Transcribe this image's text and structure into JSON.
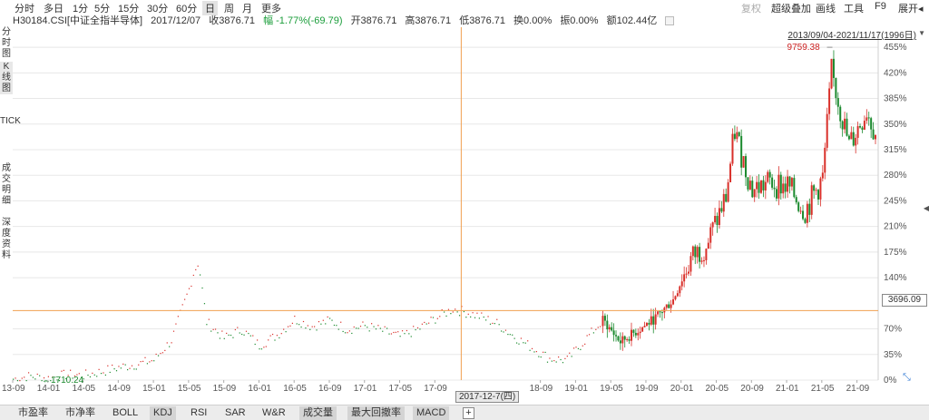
{
  "periods": [
    "分时",
    "多日",
    "1分",
    "5分",
    "15分",
    "30分",
    "60分",
    "日",
    "周",
    "月",
    "更多"
  ],
  "active_period": "日",
  "right_menu": {
    "fuquan": "复权",
    "overlay": "超级叠加",
    "draw": "画线",
    "tools": "工具",
    "f9": "F9",
    "expand": "展开◂"
  },
  "info": {
    "code_name": "H30184.CSI[中证全指半导体]",
    "date": "2017/12/07",
    "close": "收3876.71",
    "change": "幅 -1.77%(-69.79)",
    "open": "开3876.71",
    "high": "高3876.71",
    "low": "低3876.71",
    "turnover": "换0.00%",
    "amplitude": "振0.00%",
    "amount": "额102.44亿"
  },
  "side_tabs": {
    "fenshi": "分时图",
    "kline": "K线图",
    "tick": "TICK",
    "deal": "成交明细",
    "depth": "深度资料"
  },
  "range_label": "2013/09/04-2021/11/17(1996日)",
  "ref_value": "3696.09",
  "crosshair_date": "2017-12-7(四)",
  "colors": {
    "up": "#d9302a",
    "down": "#1b8a2e",
    "crosshair": "#f0a050",
    "grid": "#e8e8e8"
  },
  "chart_data": {
    "type": "candlestick",
    "y_tick_labels": [
      "455%",
      "420%",
      "385%",
      "350%",
      "315%",
      "280%",
      "245%",
      "210%",
      "175%",
      "140%",
      "70%",
      "35%",
      "0%"
    ],
    "y_tick_values": [
      455,
      420,
      385,
      350,
      315,
      280,
      245,
      210,
      175,
      140,
      70,
      35,
      0
    ],
    "ylim": [
      0,
      470
    ],
    "x_tick_labels": [
      "13-09",
      "14-01",
      "14-05",
      "14-09",
      "15-01",
      "15-05",
      "15-09",
      "16-01",
      "16-05",
      "16-09",
      "17-01",
      "17-05",
      "17-09",
      "18-09",
      "19-01",
      "19-05",
      "19-09",
      "20-01",
      "20-05",
      "20-09",
      "21-01",
      "21-05",
      "21-09"
    ],
    "x_tick_dates": [
      "2013-09",
      "2014-01",
      "2014-05",
      "2014-09",
      "2015-01",
      "2015-05",
      "2015-09",
      "2016-01",
      "2016-05",
      "2016-09",
      "2017-01",
      "2017-05",
      "2017-09",
      "2018-09",
      "2019-01",
      "2019-05",
      "2019-09",
      "2020-01",
      "2020-05",
      "2020-09",
      "2021-01",
      "2021-05",
      "2021-09"
    ],
    "x_range": [
      "2013-09",
      "2021-11"
    ],
    "max_label": "9759.38",
    "min_label": "1710.24",
    "ref_line_pct": 95,
    "crosshair_date": "2017-12",
    "series": [
      {
        "name": "",
        "dates": [
          "2013-09",
          "2013-11",
          "2014-01",
          "2014-03",
          "2014-05",
          "2014-07",
          "2014-09",
          "2014-11",
          "2015-01",
          "2015-03",
          "2015-05",
          "2015-06",
          "2015-07",
          "2015-09",
          "2015-11",
          "2016-01",
          "2016-03",
          "2016-05",
          "2016-07",
          "2016-09",
          "2016-11",
          "2017-01",
          "2017-03",
          "2017-05",
          "2017-07",
          "2017-09",
          "2017-11",
          "2017-12",
          "2018-02",
          "2018-04",
          "2018-06",
          "2018-08",
          "2018-10",
          "2018-12",
          "2019-02",
          "2019-04",
          "2019-06",
          "2019-08",
          "2019-10",
          "2019-12",
          "2020-02",
          "2020-04",
          "2020-06",
          "2020-07",
          "2020-09",
          "2020-11",
          "2021-01",
          "2021-03",
          "2021-05",
          "2021-06",
          "2021-08",
          "2021-10",
          "2021-11"
        ],
        "pct": [
          2,
          6,
          3,
          8,
          7,
          12,
          18,
          22,
          28,
          55,
          125,
          168,
          80,
          58,
          70,
          48,
          62,
          84,
          74,
          82,
          70,
          75,
          68,
          60,
          70,
          85,
          98,
          95,
          88,
          78,
          60,
          45,
          30,
          28,
          55,
          82,
          52,
          68,
          85,
          110,
          165,
          190,
          250,
          340,
          260,
          270,
          265,
          232,
          275,
          420,
          320,
          370,
          338
        ]
      }
    ]
  },
  "bottom_tabs": [
    "市盈率",
    "市净率",
    "BOLL",
    "KDJ",
    "RSI",
    "SAR",
    "W&R",
    "成交量",
    "最大回撤率",
    "MACD"
  ],
  "active_bottom_tab": "KDJ"
}
